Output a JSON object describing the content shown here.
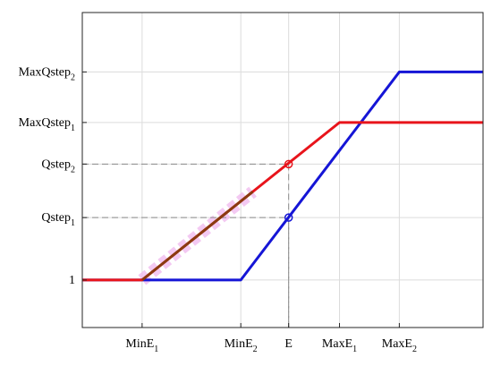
{
  "chart_data": {
    "type": "line",
    "title": "",
    "xlabel": "",
    "ylabel": "",
    "grid": true,
    "xlim": [
      0,
      6.7
    ],
    "ylim": [
      0,
      5.3
    ],
    "x_ticks": [
      {
        "value": 1.0,
        "main": "MinE",
        "sub": "1"
      },
      {
        "value": 2.65,
        "main": "MinE",
        "sub": "2"
      },
      {
        "value": 3.45,
        "main": "E",
        "sub": ""
      },
      {
        "value": 4.3,
        "main": "MaxE",
        "sub": "1"
      },
      {
        "value": 5.3,
        "main": "MaxE",
        "sub": "2"
      }
    ],
    "y_ticks": [
      {
        "value": 0.8,
        "main": "1",
        "sub": ""
      },
      {
        "value": 1.85,
        "main": "Qstep",
        "sub": "1"
      },
      {
        "value": 2.75,
        "main": "Qstep",
        "sub": "2"
      },
      {
        "value": 3.45,
        "main": "MaxQstep",
        "sub": "1"
      },
      {
        "value": 4.3,
        "main": "MaxQstep",
        "sub": "2"
      }
    ],
    "series": [
      {
        "color": "#e8141b",
        "x": [
          0,
          1.0,
          4.3,
          6.7
        ],
        "y": [
          0.8,
          0.8,
          3.45,
          3.45
        ]
      },
      {
        "color": "#1515d6",
        "x": [
          0,
          2.65,
          5.3,
          6.7
        ],
        "y": [
          0.8,
          0.8,
          4.3,
          4.3
        ]
      }
    ],
    "markers": [
      {
        "x": 3.45,
        "y": 2.75,
        "color": "#e8141b"
      },
      {
        "x": 3.45,
        "y": 1.85,
        "color": "#1515d6"
      }
    ],
    "guides": [
      {
        "x": 3.45,
        "y": 2.75
      },
      {
        "x": 3.45,
        "y": 1.85
      }
    ],
    "highlight": {
      "x_from": 1.0,
      "x_to": 2.85,
      "color": "#f0b8ee"
    },
    "overlap_color": "#8a3a10",
    "axis_color": "#262626",
    "grid_color": "#dcdcdc"
  }
}
